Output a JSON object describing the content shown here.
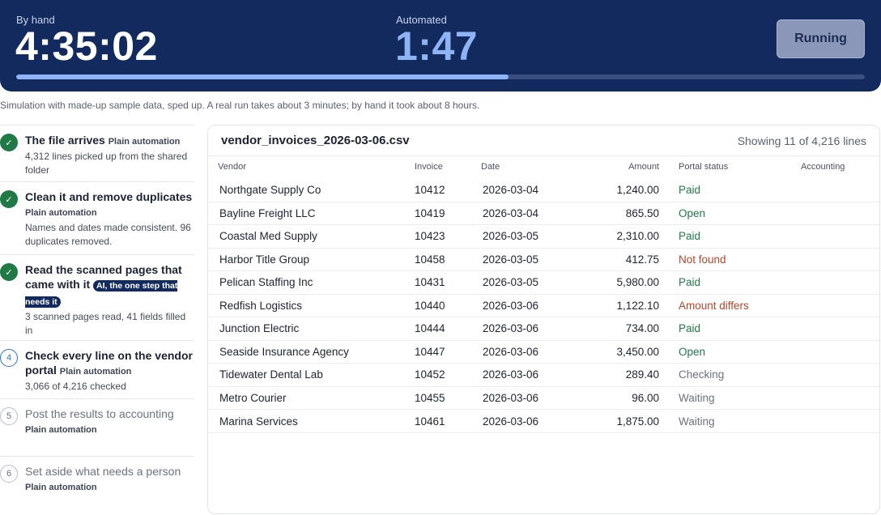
{
  "header": {
    "by_hand_label": "By hand",
    "by_hand_time": "4:35:02",
    "automated_label": "Automated",
    "automated_time": "1:47",
    "run_button": "Running",
    "progress": 0.58
  },
  "note": "Simulation with made-up sample data, sped up. A real run takes about 3 minutes; by hand it took about 8 hours.",
  "steps": [
    {
      "state": "done",
      "marker": "✓",
      "title": "The file arrives",
      "tag": "Plain automation",
      "desc": "4,312 lines picked up from the shared folder"
    },
    {
      "state": "done",
      "marker": "✓",
      "title": "Clean it and remove duplicates",
      "tag": "Plain automation",
      "desc": "Names and dates made consistent. 96 duplicates removed."
    },
    {
      "state": "done",
      "marker": "✓",
      "title": "Read the scanned pages that came with it",
      "tag": "AI, the one step that needs it",
      "desc": "3 scanned pages read, 41 fields filled in"
    },
    {
      "state": "active",
      "marker": "4",
      "title": "Check every line on the vendor portal",
      "tag": "Plain automation",
      "desc": "3,066 of 4,216 checked"
    },
    {
      "state": "pending",
      "marker": "5",
      "title": "Post the results to accounting",
      "tag": "Plain automation",
      "desc": ""
    },
    {
      "state": "pending",
      "marker": "6",
      "title": "Set aside what needs a person",
      "tag": "Plain automation",
      "desc": ""
    }
  ],
  "table": {
    "file_name": "vendor_invoices_2026-03-06.csv",
    "showing": "Showing 11 of 4,216 lines",
    "columns": [
      "Vendor",
      "Invoice",
      "Date",
      "Amount",
      "Portal status",
      "Accounting"
    ],
    "rows": [
      {
        "vendor": "Northgate Supply Co",
        "invoice": "10412",
        "date": "2026-03-04",
        "amount": "1,240.00",
        "status": "Paid",
        "status_kind": "good",
        "accounting": ""
      },
      {
        "vendor": "Bayline Freight LLC",
        "invoice": "10419",
        "date": "2026-03-04",
        "amount": "865.50",
        "status": "Open",
        "status_kind": "good",
        "accounting": ""
      },
      {
        "vendor": "Coastal Med Supply",
        "invoice": "10423",
        "date": "2026-03-05",
        "amount": "2,310.00",
        "status": "Paid",
        "status_kind": "good",
        "accounting": ""
      },
      {
        "vendor": "Harbor Title Group",
        "invoice": "10458",
        "date": "2026-03-05",
        "amount": "412.75",
        "status": "Not found",
        "status_kind": "bad",
        "accounting": ""
      },
      {
        "vendor": "Pelican Staffing Inc",
        "invoice": "10431",
        "date": "2026-03-05",
        "amount": "5,980.00",
        "status": "Paid",
        "status_kind": "good",
        "accounting": ""
      },
      {
        "vendor": "Redfish Logistics",
        "invoice": "10440",
        "date": "2026-03-06",
        "amount": "1,122.10",
        "status": "Amount differs",
        "status_kind": "bad",
        "accounting": ""
      },
      {
        "vendor": "Junction Electric",
        "invoice": "10444",
        "date": "2026-03-06",
        "amount": "734.00",
        "status": "Paid",
        "status_kind": "good",
        "accounting": ""
      },
      {
        "vendor": "Seaside Insurance Agency",
        "invoice": "10447",
        "date": "2026-03-06",
        "amount": "3,450.00",
        "status": "Open",
        "status_kind": "good",
        "accounting": ""
      },
      {
        "vendor": "Tidewater Dental Lab",
        "invoice": "10452",
        "date": "2026-03-06",
        "amount": "289.40",
        "status": "Checking",
        "status_kind": "muted",
        "accounting": ""
      },
      {
        "vendor": "Metro Courier",
        "invoice": "10455",
        "date": "2026-03-06",
        "amount": "96.00",
        "status": "Waiting",
        "status_kind": "muted",
        "accounting": ""
      },
      {
        "vendor": "Marina Services",
        "invoice": "10461",
        "date": "2026-03-06",
        "amount": "1,875.00",
        "status": "Waiting",
        "status_kind": "muted",
        "accounting": ""
      }
    ]
  },
  "colors": {
    "banner": "#132a5e",
    "accent": "#8fb4f5",
    "status_good": "#1f7a46",
    "status_bad": "#b5452b",
    "status_muted": "#6b7280"
  }
}
